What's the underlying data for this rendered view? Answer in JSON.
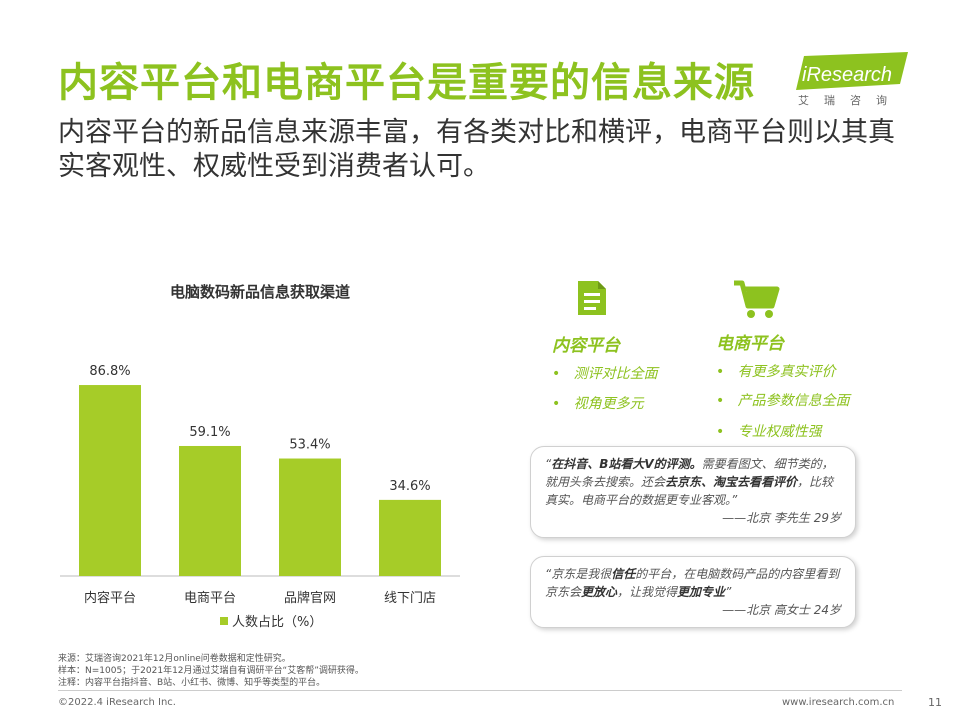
{
  "title": "内容平台和电商平台是重要的信息来源",
  "subtitle": "内容平台的新品信息来源丰富，有各类对比和横评，电商平台则以其真实客观性、权威性受到消费者认可。",
  "logo": {
    "text": "iResearch",
    "sub": "艾瑞咨询"
  },
  "chart_data": {
    "type": "bar",
    "title": "电脑数码新品信息获取渠道",
    "categories": [
      "内容平台",
      "电商平台",
      "品牌官网",
      "线下门店"
    ],
    "series": [
      {
        "name": "人数占比（%）",
        "values": [
          86.8,
          59.1,
          53.4,
          34.6
        ]
      }
    ],
    "data_labels": [
      "86.8%",
      "59.1%",
      "53.4%",
      "34.6%"
    ],
    "ylim": [
      0,
      100
    ],
    "grid": false,
    "legend": "bottom",
    "color": "#a6cc28"
  },
  "channels": [
    {
      "name": "内容平台",
      "icon": "document-icon",
      "bullets": [
        "测评对比全面",
        "视角更多元"
      ]
    },
    {
      "name": "电商平台",
      "icon": "shopping-cart-icon",
      "bullets": [
        "有更多真实评价",
        "产品参数信息全面",
        "专业权威性强"
      ]
    }
  ],
  "quotes": [
    {
      "p1": "“",
      "b1": "在抖音、B站看大V的评测。",
      "p2": "需要看图文、细节类的，就用头条去搜索。还会",
      "b2": "去京东、淘宝去看看评价",
      "p3": "，比较真实。电商平台的数据更专业客观。”",
      "sig": "——北京 李先生 29岁"
    },
    {
      "p1": "“京东是我很",
      "b1": "信任",
      "p2": "的平台，在电脑数码产品的内容里看到京东会",
      "b2": "更放心",
      "p3": "，让我觉得",
      "b3": "更加专业",
      "p4": "”",
      "sig": "——北京 高女士 24岁"
    }
  ],
  "notes": [
    "来源：艾瑞咨询2021年12月online问卷数据和定性研究。",
    "样本：N=1005；于2021年12月通过艾瑞自有调研平台“艾客帮”调研获得。",
    "注释：内容平台指抖音、B站、小红书、微博、知乎等类型的平台。"
  ],
  "footer": {
    "copyright": "©2022.4 iResearch Inc.",
    "url": "www.iresearch.com.cn",
    "page": "11"
  },
  "colors": {
    "accent": "#8dc21f",
    "bar": "#a6cc28"
  }
}
